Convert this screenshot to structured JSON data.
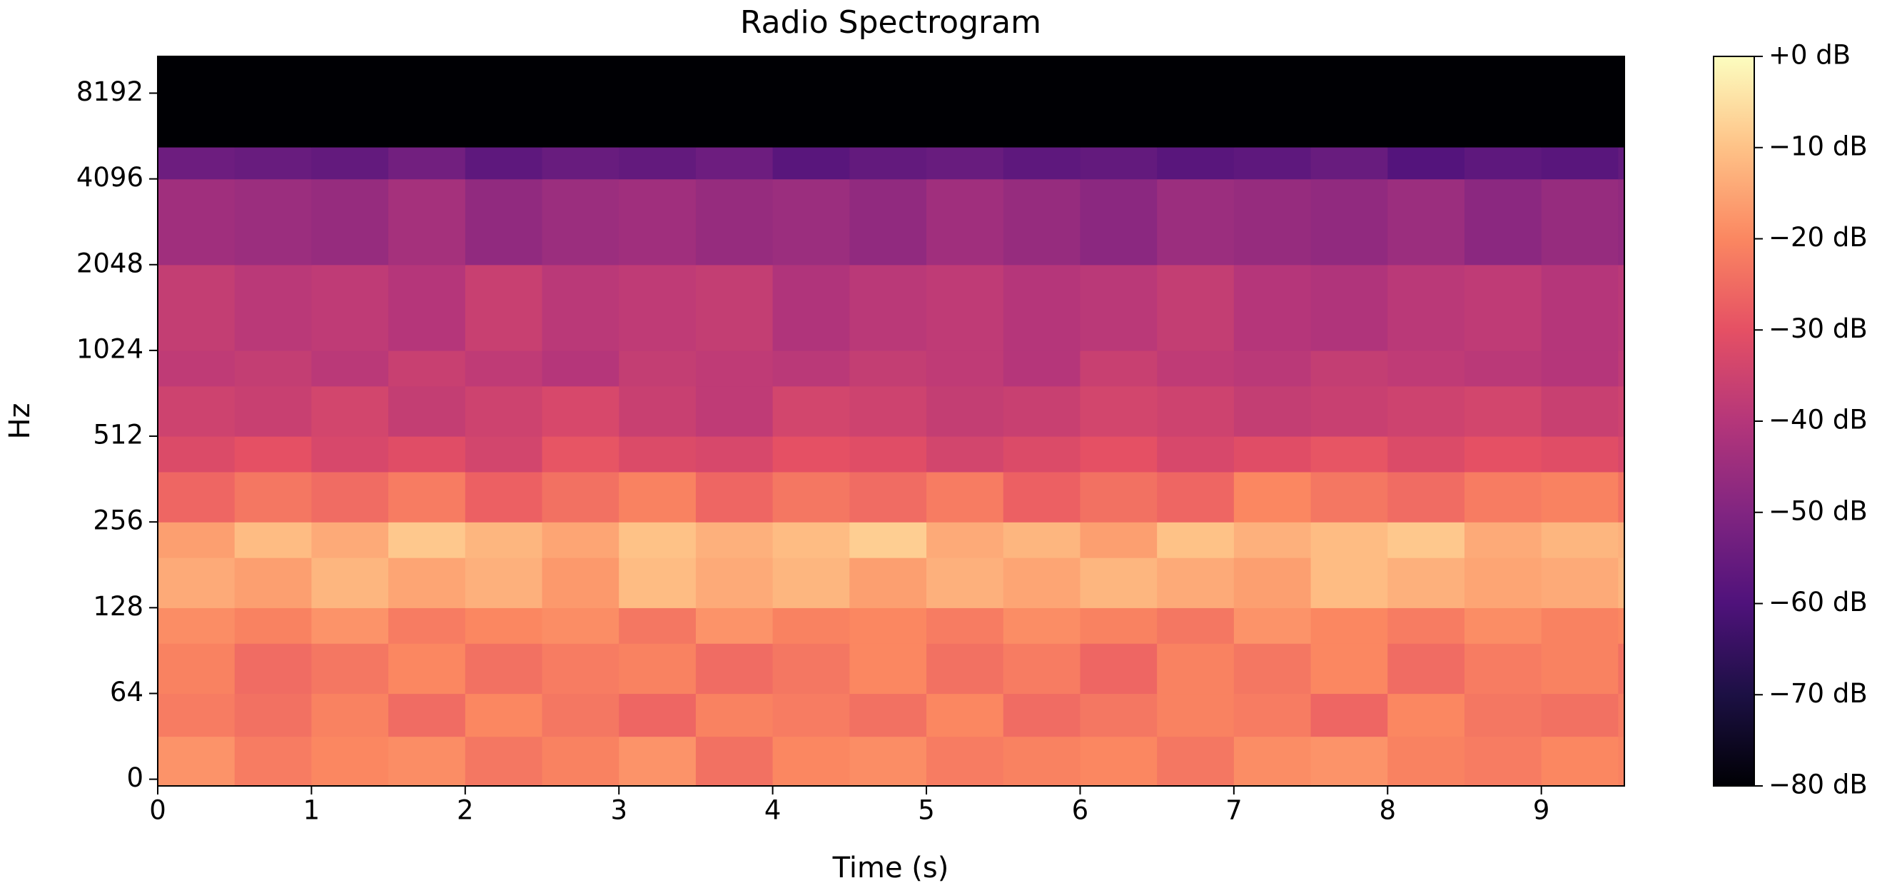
{
  "chart_data": {
    "type": "spectrogram",
    "title": "Radio Spectrogram",
    "x_label": "Time (s)",
    "y_label": "Hz",
    "colormap": "magma",
    "xlim": [
      0,
      9.54
    ],
    "xticks": [
      0,
      1,
      2,
      3,
      4,
      5,
      6,
      7,
      8,
      9
    ],
    "yscale": "symlog",
    "linthresh": 64,
    "ylim": [
      -5,
      11025
    ],
    "yticks": [
      0,
      64,
      128,
      256,
      512,
      1024,
      2048,
      4096,
      8192
    ],
    "clim": [
      -80,
      0
    ],
    "cticks": [
      {
        "value": -80,
        "label": "−80 dB"
      },
      {
        "value": -70,
        "label": "−70 dB"
      },
      {
        "value": -60,
        "label": "−60 dB"
      },
      {
        "value": -50,
        "label": "−50 dB"
      },
      {
        "value": -40,
        "label": "−40 dB"
      },
      {
        "value": -30,
        "label": "−30 dB"
      },
      {
        "value": -20,
        "label": "−20 dB"
      },
      {
        "value": -10,
        "label": "−10 dB"
      },
      {
        "value": 0,
        "label": "+0 dB"
      }
    ],
    "time_bins": [
      0,
      0.5,
      1,
      1.5,
      2,
      2.5,
      3,
      3.5,
      4,
      4.5,
      5,
      5.5,
      6,
      6.5,
      7,
      7.5,
      8,
      8.5,
      9,
      9.5,
      9.54
    ],
    "freq_bins": [
      -5,
      32,
      64,
      96,
      128,
      192,
      256,
      384,
      512,
      768,
      1024,
      2048,
      4096,
      5300,
      11025
    ],
    "z": [
      [
        -18,
        -22,
        -20,
        -19,
        -23,
        -21,
        -18,
        -24,
        -20,
        -19,
        -22,
        -21,
        -20,
        -23,
        -19,
        -18,
        -21,
        -22,
        -20,
        -21
      ],
      [
        -22,
        -24,
        -21,
        -25,
        -20,
        -23,
        -26,
        -21,
        -22,
        -24,
        -20,
        -25,
        -23,
        -21,
        -22,
        -26,
        -20,
        -23,
        -24,
        -22
      ],
      [
        -21,
        -25,
        -23,
        -20,
        -24,
        -22,
        -21,
        -25,
        -23,
        -20,
        -24,
        -22,
        -26,
        -21,
        -23,
        -20,
        -25,
        -22,
        -21,
        -24
      ],
      [
        -19,
        -21,
        -18,
        -22,
        -20,
        -19,
        -23,
        -18,
        -21,
        -20,
        -22,
        -19,
        -21,
        -23,
        -18,
        -20,
        -22,
        -19,
        -21,
        -20
      ],
      [
        -14,
        -16,
        -12,
        -15,
        -13,
        -17,
        -11,
        -14,
        -12,
        -16,
        -13,
        -15,
        -12,
        -14,
        -16,
        -11,
        -13,
        -15,
        -14,
        -12
      ],
      [
        -16,
        -11,
        -14,
        -9,
        -12,
        -15,
        -10,
        -13,
        -11,
        -8,
        -14,
        -12,
        -16,
        -10,
        -13,
        -11,
        -9,
        -14,
        -12,
        -13
      ],
      [
        -26,
        -23,
        -25,
        -22,
        -27,
        -24,
        -21,
        -26,
        -23,
        -25,
        -22,
        -27,
        -24,
        -26,
        -20,
        -23,
        -25,
        -22,
        -21,
        -24
      ],
      [
        -32,
        -30,
        -33,
        -31,
        -34,
        -29,
        -32,
        -33,
        -30,
        -31,
        -34,
        -32,
        -30,
        -33,
        -31,
        -29,
        -32,
        -30,
        -31,
        -33
      ],
      [
        -35,
        -36,
        -34,
        -37,
        -35,
        -33,
        -36,
        -38,
        -34,
        -35,
        -37,
        -36,
        -34,
        -35,
        -37,
        -36,
        -35,
        -34,
        -36,
        -35
      ],
      [
        -38,
        -37,
        -39,
        -36,
        -38,
        -40,
        -37,
        -38,
        -39,
        -37,
        -38,
        -40,
        -36,
        -38,
        -39,
        -37,
        -38,
        -39,
        -40,
        -38
      ],
      [
        -37,
        -39,
        -38,
        -40,
        -36,
        -39,
        -38,
        -37,
        -41,
        -39,
        -38,
        -40,
        -39,
        -37,
        -40,
        -41,
        -39,
        -38,
        -40,
        -39
      ],
      [
        -44,
        -45,
        -46,
        -43,
        -47,
        -45,
        -44,
        -46,
        -45,
        -47,
        -44,
        -46,
        -48,
        -45,
        -46,
        -47,
        -45,
        -48,
        -46,
        -47
      ],
      [
        -54,
        -55,
        -56,
        -53,
        -57,
        -55,
        -56,
        -54,
        -58,
        -56,
        -55,
        -57,
        -56,
        -58,
        -57,
        -55,
        -59,
        -57,
        -58,
        -56
      ],
      [
        -80,
        -80,
        -80,
        -80,
        -80,
        -80,
        -80,
        -80,
        -80,
        -80,
        -80,
        -80,
        -80,
        -80,
        -80,
        -80,
        -80,
        -80,
        -80,
        -80
      ]
    ]
  }
}
